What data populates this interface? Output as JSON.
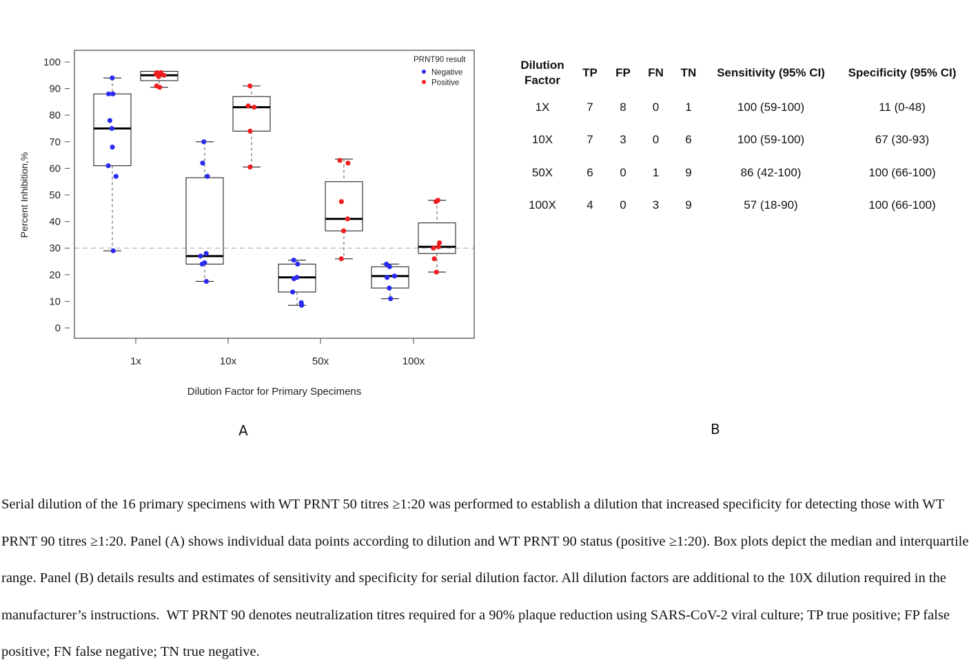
{
  "chart_data": [
    {
      "type": "box",
      "panel_label": "A",
      "title": "",
      "xlabel": "Dilution Factor for Primary Specimens",
      "ylabel": "Percent Inhibition,%",
      "ylim": [
        0,
        100
      ],
      "yticks": [
        "0",
        "10",
        "20",
        "30",
        "40",
        "50",
        "60",
        "70",
        "80",
        "90",
        "100"
      ],
      "categories": [
        "1x",
        "10x",
        "50x",
        "100x"
      ],
      "reference_line": {
        "y": 30,
        "style": "dashed"
      },
      "legend": {
        "title": "PRNT90 result",
        "position": "top-right",
        "entries": [
          {
            "name": "Negative",
            "color": "#2b2bf0"
          },
          {
            "name": "Positive",
            "color": "#f01e1e"
          }
        ]
      },
      "series": [
        {
          "name": "Negative",
          "color": "#2b2bf0",
          "boxes": [
            {
              "category": "1x",
              "whisker_low": 29,
              "q1": 61,
              "median": 75,
              "q3": 88,
              "whisker_high": 94,
              "points": [
                94,
                88,
                88,
                78,
                75,
                68,
                61,
                57,
                29
              ]
            },
            {
              "category": "10x",
              "whisker_low": 17.5,
              "q1": 24,
              "median": 27,
              "q3": 56.5,
              "whisker_high": 70,
              "points": [
                70,
                62,
                57,
                28,
                27,
                24.5,
                24,
                17.5
              ]
            },
            {
              "category": "50x",
              "whisker_low": 8.5,
              "q1": 13.5,
              "median": 19,
              "q3": 24,
              "whisker_high": 25.5,
              "points": [
                25.5,
                24,
                19,
                18.5,
                13.5,
                9.5,
                8.5
              ]
            },
            {
              "category": "100x",
              "whisker_low": 11,
              "q1": 15,
              "median": 19.5,
              "q3": 23,
              "whisker_high": 24,
              "points": [
                24,
                23,
                19.5,
                19,
                15,
                11
              ]
            }
          ]
        },
        {
          "name": "Positive",
          "color": "#f01e1e",
          "boxes": [
            {
              "category": "1x",
              "whisker_low": 90.5,
              "q1": 93,
              "median": 95,
              "q3": 96.5,
              "whisker_high": 96.5,
              "points": [
                96,
                96,
                95.5,
                95,
                94.5,
                91,
                90.5
              ]
            },
            {
              "category": "10x",
              "whisker_low": 60.5,
              "q1": 74,
              "median": 83,
              "q3": 87,
              "whisker_high": 91,
              "points": [
                91,
                83.5,
                83,
                74,
                60.5
              ]
            },
            {
              "category": "50x",
              "whisker_low": 26,
              "q1": 36.5,
              "median": 41,
              "q3": 55,
              "whisker_high": 63.5,
              "points": [
                63,
                62,
                47.5,
                41,
                36.5,
                26
              ]
            },
            {
              "category": "100x",
              "whisker_low": 21,
              "q1": 28,
              "median": 30.5,
              "q3": 39.5,
              "whisker_high": 48,
              "points": [
                48,
                47.5,
                32,
                30.5,
                30,
                26,
                21
              ]
            }
          ]
        }
      ]
    },
    {
      "type": "table",
      "panel_label": "B",
      "columns": [
        "Dilution Factor",
        "TP",
        "FP",
        "FN",
        "TN",
        "Sensitivity (95% CI)",
        "Specificity (95% CI)"
      ],
      "rows": [
        [
          "1X",
          "7",
          "8",
          "0",
          "1",
          "100 (59-100)",
          "11 (0-48)"
        ],
        [
          "10X",
          "7",
          "3",
          "0",
          "6",
          "100 (59-100)",
          "67 (30-93)"
        ],
        [
          "50X",
          "6",
          "0",
          "1",
          "9",
          "86 (42-100)",
          "100 (66-100)"
        ],
        [
          "100X",
          "4",
          "0",
          "3",
          "9",
          "57 (18-90)",
          "100 (66-100)"
        ]
      ]
    }
  ],
  "table": {
    "header_line1": "Dilution",
    "header_line2": "Factor",
    "header_tp": "TP",
    "header_fp": "FP",
    "header_fn": "FN",
    "header_tn": "TN",
    "header_sens": "Sensitivity (95% CI)",
    "header_spec": "Specificity (95% CI)",
    "rows": [
      {
        "dil": "1X",
        "tp": "7",
        "fp": "8",
        "fn": "0",
        "tn": "1",
        "sens": "100 (59-100)",
        "spec": "11 (0-48)"
      },
      {
        "dil": "10X",
        "tp": "7",
        "fp": "3",
        "fn": "0",
        "tn": "6",
        "sens": "100 (59-100)",
        "spec": "67 (30-93)"
      },
      {
        "dil": "50X",
        "tp": "6",
        "fp": "0",
        "fn": "1",
        "tn": "9",
        "sens": "86 (42-100)",
        "spec": "100 (66-100)"
      },
      {
        "dil": "100X",
        "tp": "4",
        "fp": "0",
        "fn": "3",
        "tn": "9",
        "sens": "57 (18-90)",
        "spec": "100 (66-100)"
      }
    ]
  },
  "panel_b_label": "B",
  "caption": "Serial dilution of the 16 primary specimens with WT PRNT 50 titres ≥1:20 was performed to establish a dilution that increased specificity for detecting those with WT PRNT 90 titres ≥1:20. Panel (A) shows individual data points according to dilution and WT PRNT 90 status (positive ≥1:20). Box plots depict the median and interquartile range. Panel (B) details results and estimates of sensitivity and specificity for serial dilution factor. All dilution factors are additional to the 10X dilution required in the manufacturer’s instructions.  WT PRNT 90 denotes neutralization titres required for a 90% plaque reduction using SARS-CoV-2 viral culture; TP true positive; FP false positive; FN false negative; TN true negative."
}
